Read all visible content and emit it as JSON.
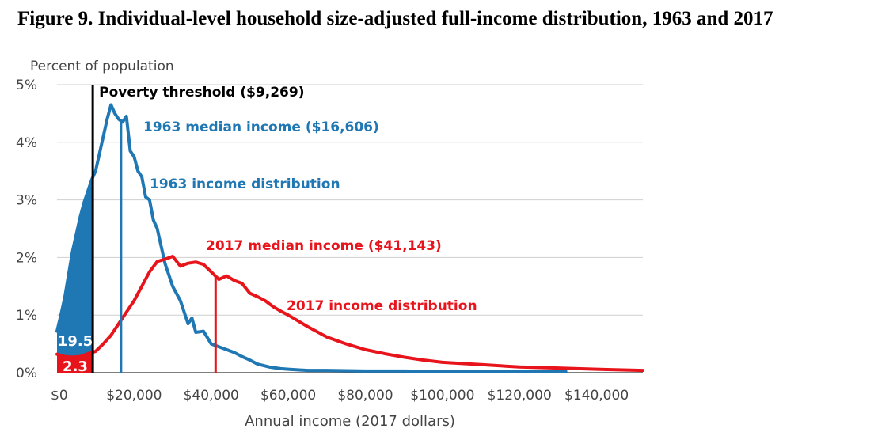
{
  "figure_title": "Figure 9. Individual-level household size-adjusted full-income distribution, 1963 and 2017",
  "chart_data": {
    "type": "line",
    "ylabel": "Percent of population",
    "xlabel": "Annual income (2017 dollars)",
    "xlim": [
      0,
      152000
    ],
    "ylim": [
      0,
      5
    ],
    "x_ticks": [
      0,
      20000,
      40000,
      60000,
      80000,
      100000,
      120000,
      140000
    ],
    "x_tick_labels": [
      "$0",
      "$20,000",
      "$40,000",
      "$60,000",
      "$80,000",
      "$100,000",
      "$120,000",
      "$140,000"
    ],
    "y_ticks": [
      0,
      1,
      2,
      3,
      4,
      5
    ],
    "y_tick_labels": [
      "0%",
      "1%",
      "2%",
      "3%",
      "4%",
      "5%"
    ],
    "grid": "horizontal",
    "series": [
      {
        "name": "1963 income distribution",
        "color": "#1f77b4",
        "x": [
          0,
          1000,
          2000,
          3000,
          4000,
          5000,
          6000,
          7000,
          8000,
          9000,
          10000,
          11000,
          12000,
          13000,
          14000,
          15000,
          16000,
          17000,
          18000,
          19000,
          20000,
          21000,
          22000,
          23000,
          24000,
          25000,
          26000,
          27000,
          28000,
          30000,
          32000,
          34000,
          35000,
          36000,
          38000,
          40000,
          42000,
          44000,
          46000,
          48000,
          50000,
          52000,
          55000,
          58000,
          60000,
          65000,
          70000,
          80000,
          90000,
          100000,
          110000,
          120000,
          130000,
          132000
        ],
        "values": [
          0.72,
          1.0,
          1.3,
          1.7,
          2.1,
          2.4,
          2.7,
          2.95,
          3.15,
          3.35,
          3.5,
          3.8,
          4.1,
          4.4,
          4.65,
          4.5,
          4.4,
          4.35,
          4.45,
          3.85,
          3.75,
          3.5,
          3.4,
          3.05,
          3.0,
          2.65,
          2.5,
          2.2,
          1.9,
          1.5,
          1.25,
          0.85,
          0.95,
          0.7,
          0.72,
          0.5,
          0.45,
          0.4,
          0.35,
          0.28,
          0.22,
          0.15,
          0.1,
          0.07,
          0.06,
          0.04,
          0.04,
          0.03,
          0.03,
          0.02,
          0.02,
          0.02,
          0.02,
          0.02
        ]
      },
      {
        "name": "2017 income distribution",
        "color": "#e8141b",
        "x": [
          0,
          2000,
          4000,
          6000,
          8000,
          10000,
          12000,
          14000,
          16000,
          18000,
          20000,
          22000,
          24000,
          26000,
          28000,
          30000,
          32000,
          34000,
          36000,
          38000,
          40000,
          42000,
          44000,
          46000,
          48000,
          50000,
          52000,
          54000,
          56000,
          58000,
          60000,
          65000,
          70000,
          75000,
          80000,
          85000,
          90000,
          95000,
          100000,
          110000,
          120000,
          130000,
          140000,
          152000
        ],
        "values": [
          0.32,
          0.28,
          0.27,
          0.28,
          0.33,
          0.37,
          0.5,
          0.65,
          0.85,
          1.05,
          1.25,
          1.5,
          1.75,
          1.93,
          1.97,
          2.02,
          1.85,
          1.9,
          1.92,
          1.88,
          1.75,
          1.62,
          1.68,
          1.6,
          1.55,
          1.38,
          1.32,
          1.25,
          1.15,
          1.07,
          1.0,
          0.8,
          0.62,
          0.5,
          0.4,
          0.33,
          0.27,
          0.22,
          0.18,
          0.14,
          0.1,
          0.08,
          0.06,
          0.04
        ]
      }
    ],
    "poverty_threshold": {
      "x": 9269,
      "label": "Poverty threshold ($9,269)"
    },
    "medians": [
      {
        "x": 16606,
        "label": "1963 median income ($16,606)",
        "color": "#1f77b4"
      },
      {
        "x": 41143,
        "label": "2017 median income ($41,143)",
        "color": "#e8141b"
      }
    ],
    "shaded_areas": [
      {
        "series": "1963 income distribution",
        "label": "19.5",
        "color": "#1f77b4"
      },
      {
        "series": "2017 income distribution",
        "label": "2.3",
        "color": "#e8141b"
      }
    ],
    "annotations": [
      "1963 income distribution",
      "2017 income distribution"
    ]
  }
}
